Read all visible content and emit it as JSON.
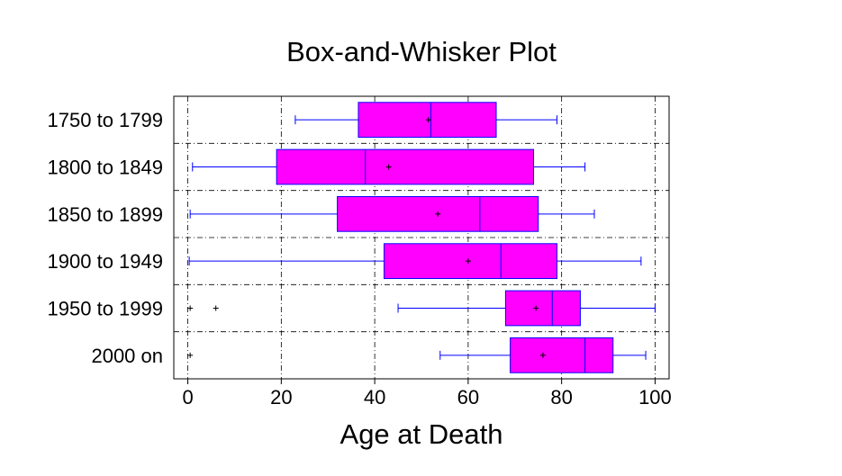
{
  "chart_data": {
    "type": "boxplot",
    "title": "Box-and-Whisker Plot",
    "xlabel": "Age at Death",
    "ylabel": "",
    "xlim": [
      -3,
      103
    ],
    "xticks": [
      0,
      20,
      40,
      60,
      80,
      100
    ],
    "grid": true,
    "orientation": "horizontal",
    "categories": [
      "1750 to 1799",
      "1800 to 1849",
      "1850 to 1899",
      "1900 to 1949",
      "1950 to 1999",
      "2000 on"
    ],
    "series": [
      {
        "category": "1750 to 1799",
        "whisker_low": 23,
        "q1": 36.5,
        "median": 52,
        "q3": 66,
        "whisker_high": 79,
        "mean": 51.5,
        "outliers": []
      },
      {
        "category": "1800 to 1849",
        "whisker_low": 1,
        "q1": 19,
        "median": 38,
        "q3": 74,
        "whisker_high": 85,
        "mean": 43,
        "outliers": []
      },
      {
        "category": "1850 to 1899",
        "whisker_low": 0.5,
        "q1": 32,
        "median": 62.5,
        "q3": 75,
        "whisker_high": 87,
        "mean": 53.5,
        "outliers": []
      },
      {
        "category": "1900 to 1949",
        "whisker_low": 0.3,
        "q1": 42,
        "median": 67,
        "q3": 79,
        "whisker_high": 97,
        "mean": 60,
        "outliers": []
      },
      {
        "category": "1950 to 1999",
        "whisker_low": 45,
        "q1": 68,
        "median": 78,
        "q3": 84,
        "whisker_high": 100,
        "mean": 74.5,
        "outliers": [
          0.5,
          6
        ]
      },
      {
        "category": "2000 on",
        "whisker_low": 54,
        "q1": 69,
        "median": 85,
        "q3": 91,
        "whisker_high": 98,
        "mean": 76,
        "outliers": [
          0.5
        ]
      }
    ],
    "colors": {
      "box_fill": "#ff00ff",
      "box_stroke": "#0000ff",
      "whisker": "#0000ff",
      "grid": "#000000"
    }
  }
}
